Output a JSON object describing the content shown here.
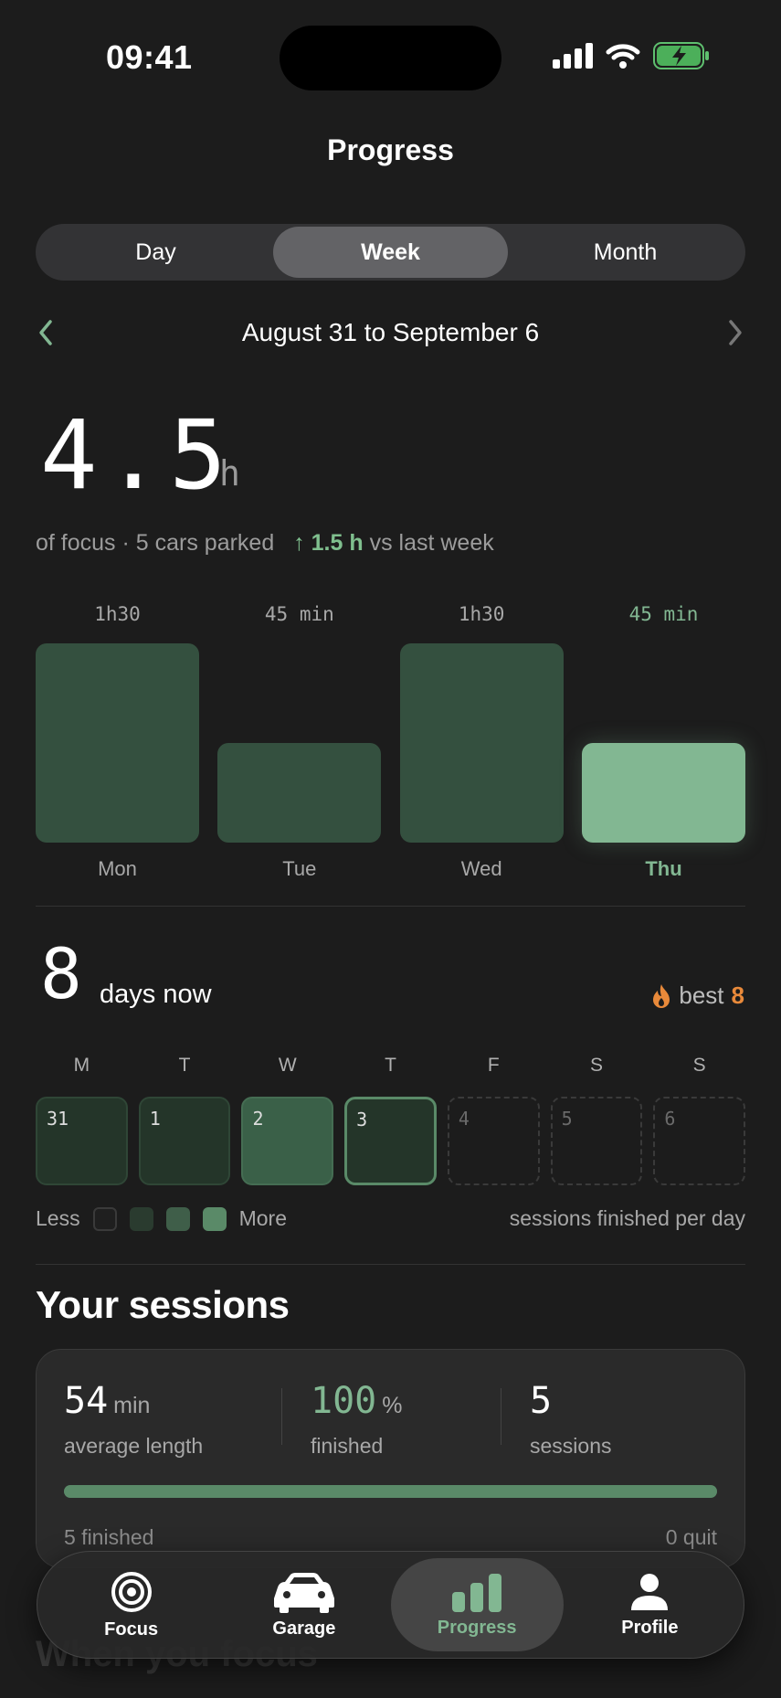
{
  "status_bar": {
    "time": "09:41"
  },
  "header": {
    "title": "Progress"
  },
  "segments": [
    {
      "label": "Day",
      "active": false
    },
    {
      "label": "Week",
      "active": true
    },
    {
      "label": "Month",
      "active": false
    }
  ],
  "range": {
    "label": "August 31 to September 6"
  },
  "summary": {
    "total_value": "4.5",
    "total_unit": "h",
    "caption": "of focus · 5 cars parked",
    "delta": "1.5 h",
    "delta_suffix": "vs last week"
  },
  "chart_data": {
    "type": "bar",
    "categories": [
      "Mon",
      "Tue",
      "Wed",
      "Thu"
    ],
    "values": [
      90,
      45,
      90,
      45
    ],
    "value_labels": [
      "1h30",
      "45 min",
      "1h30",
      "45 min"
    ],
    "unit": "min",
    "highlighted": "Thu"
  },
  "streak": {
    "count": "8",
    "label": "days now",
    "best_label": "best",
    "best_value": "8"
  },
  "week_days": [
    "M",
    "T",
    "W",
    "T",
    "F",
    "S",
    "S"
  ],
  "week_cells": [
    {
      "date": "31",
      "level": "l1"
    },
    {
      "date": "1",
      "level": "l1"
    },
    {
      "date": "2",
      "level": "l2"
    },
    {
      "date": "3",
      "level": "today"
    },
    {
      "date": "4",
      "level": "empty"
    },
    {
      "date": "5",
      "level": "empty"
    },
    {
      "date": "6",
      "level": "empty"
    }
  ],
  "legend": {
    "less": "Less",
    "more": "More",
    "note": "sessions finished per day",
    "colors": [
      "#1f1f1f",
      "#2a3b2f",
      "#3f5e49",
      "#5a8a68"
    ]
  },
  "sessions": {
    "title": "Your sessions",
    "avg_value": "54",
    "avg_unit": "min",
    "avg_label": "average length",
    "finished_value": "100",
    "finished_unit": "%",
    "finished_label": "finished",
    "count_value": "5",
    "count_label": "sessions",
    "finished_fraction": 1.0,
    "finished_count": "5 finished",
    "quit_count": "0 quit"
  },
  "next_section": {
    "title": "When you focus"
  },
  "tabbar": [
    {
      "label": "Focus",
      "icon": "target-icon",
      "active": false
    },
    {
      "label": "Garage",
      "icon": "car-icon",
      "active": false
    },
    {
      "label": "Progress",
      "icon": "bar-chart-icon",
      "active": true
    },
    {
      "label": "Profile",
      "icon": "person-icon",
      "active": false
    }
  ],
  "colors": {
    "accent": "#82b792",
    "streak": "#e8893a",
    "bar": "#34503f"
  }
}
